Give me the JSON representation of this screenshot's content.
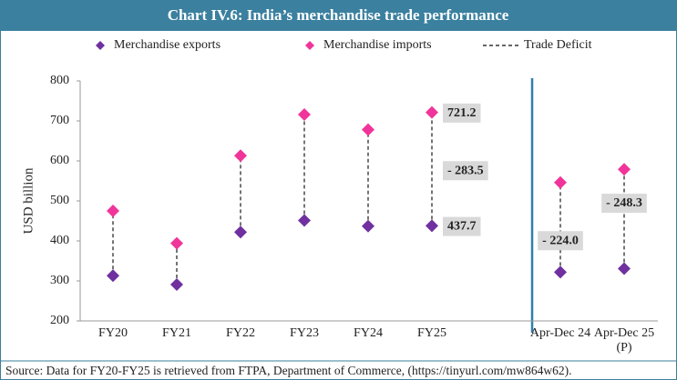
{
  "chart_data": {
    "type": "dot-range",
    "title": "Chart IV.6: India’s merchandise trade performance",
    "y_label": "USD billion",
    "categories": [
      "FY20",
      "FY21",
      "FY22",
      "FY23",
      "FY24",
      "FY25",
      "Apr-Dec 24",
      "Apr-Dec 25 (P)"
    ],
    "series": [
      {
        "name": "Merchandise exports",
        "color": "#7030a0",
        "values": [
          313,
          291,
          422,
          451,
          437,
          437.7,
          322,
          330.7
        ],
        "value_labels": [
          null,
          null,
          null,
          null,
          null,
          "437.7",
          null,
          null
        ]
      },
      {
        "name": "Merchandise imports",
        "color": "#f0359a",
        "values": [
          475,
          394,
          613,
          716,
          678,
          721.2,
          546,
          579
        ],
        "value_labels": [
          null,
          null,
          null,
          null,
          null,
          "721.2",
          null,
          null
        ]
      },
      {
        "name": "Trade Deficit",
        "color": "#666666",
        "values": [
          -162,
          -103,
          -191,
          -265,
          -241,
          -283.5,
          -224.0,
          -248.3
        ],
        "value_labels": [
          null,
          null,
          null,
          null,
          null,
          "- 283.5",
          "- 224.0",
          "- 248.3"
        ]
      }
    ],
    "ylim": [
      200,
      800
    ],
    "yticks": [
      200,
      300,
      400,
      500,
      600,
      700,
      800
    ],
    "grid": false,
    "source": "Source: Data for FY20-FY25 is retrieved from FTPA, Department of Commerce, (https://tinyurl.com/mw864w62)."
  }
}
